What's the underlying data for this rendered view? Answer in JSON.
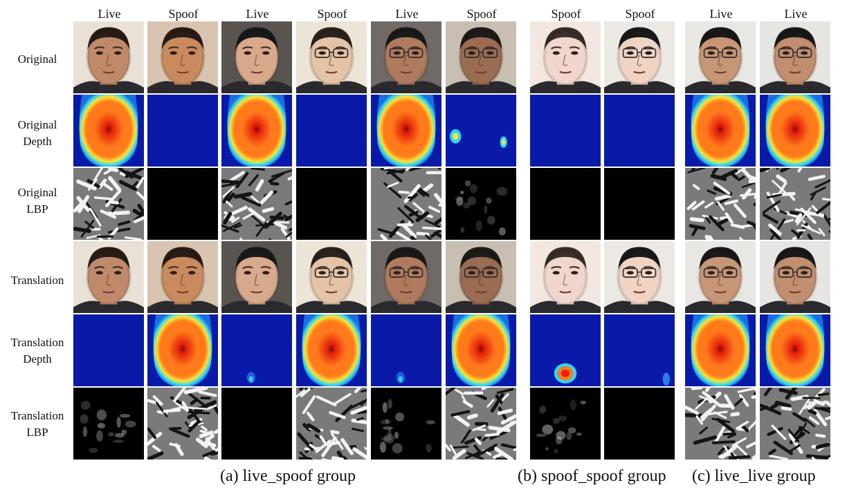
{
  "columns": [
    "Live",
    "Spoof",
    "Live",
    "Spoof",
    "Live",
    "Spoof",
    "Spoof",
    "Spoof",
    "Live",
    "Live"
  ],
  "rows": [
    {
      "label": "Original",
      "kind": "face"
    },
    {
      "label": "Original\nDepth",
      "kind": "depth"
    },
    {
      "label": "Original\nLBP",
      "kind": "lbp"
    },
    {
      "label": "Translation",
      "kind": "face"
    },
    {
      "label": "Translation\nDepth",
      "kind": "depth"
    },
    {
      "label": "Translation\nLBP",
      "kind": "lbp"
    }
  ],
  "captions": [
    "(a) live_spoof group",
    "(b) spoof_spoof group",
    "(c) live_live group"
  ],
  "cells": {
    "face": [
      {
        "subject": "man-dark-hair",
        "skin": "#c08a6a",
        "bg": "#e9e1d6",
        "hair": "#2a1d16",
        "glasses": false
      },
      {
        "subject": "man-dark-hair",
        "skin": "#c98a5e",
        "bg": "#d8c4b0",
        "hair": "#2a1d16",
        "glasses": false
      },
      {
        "subject": "young-man",
        "skin": "#d9a98c",
        "bg": "#5a5450",
        "hair": "#1a1a1a",
        "glasses": false
      },
      {
        "subject": "man-glasses",
        "skin": "#e4c3a6",
        "bg": "#ede4d8",
        "hair": "#2b241e",
        "glasses": true
      },
      {
        "subject": "man-glasses",
        "skin": "#b07a5e",
        "bg": "#6f6a66",
        "hair": "#1c1a19",
        "glasses": true
      },
      {
        "subject": "man-glasses",
        "skin": "#9a6c52",
        "bg": "#c8bfb2",
        "hair": "#1f1b18",
        "glasses": true
      },
      {
        "subject": "pale-face",
        "skin": "#f0d6cc",
        "bg": "#f3e7e2",
        "hair": "#3a2f2a",
        "glasses": false
      },
      {
        "subject": "man-glasses",
        "skin": "#efd4c3",
        "bg": "#ece8e4",
        "hair": "#1a1a1a",
        "glasses": true
      },
      {
        "subject": "man-glasses",
        "skin": "#c79676",
        "bg": "#e9e7e4",
        "hair": "#1b1918",
        "glasses": true
      },
      {
        "subject": "man-glasses",
        "skin": "#c18e6f",
        "bg": "#e7e5e2",
        "hair": "#1b1918",
        "glasses": true
      }
    ],
    "depth_original": [
      "face",
      "flat",
      "face",
      "flat",
      "face",
      "spots",
      "flat",
      "flat",
      "face",
      "face"
    ],
    "lbp_original": [
      "texture",
      "black",
      "texture",
      "black",
      "texture",
      "faint",
      "black",
      "black",
      "texture",
      "texture"
    ],
    "depth_translation": [
      "flat",
      "face",
      "flat-blip",
      "face",
      "flat-blip",
      "face",
      "blob",
      "flat-streak",
      "face",
      "face"
    ],
    "lbp_translation": [
      "faint",
      "texture",
      "black",
      "texture",
      "faint",
      "texture",
      "faint",
      "black",
      "texture",
      "texture"
    ]
  },
  "palette": {
    "depth_background": "#0a1aa8",
    "depth_cyan": "#2fd6f0",
    "depth_yellow": "#f6e43a",
    "depth_orange": "#ff7a1a",
    "depth_red": "#e5200c",
    "depth_core": "#7a0a0a"
  }
}
